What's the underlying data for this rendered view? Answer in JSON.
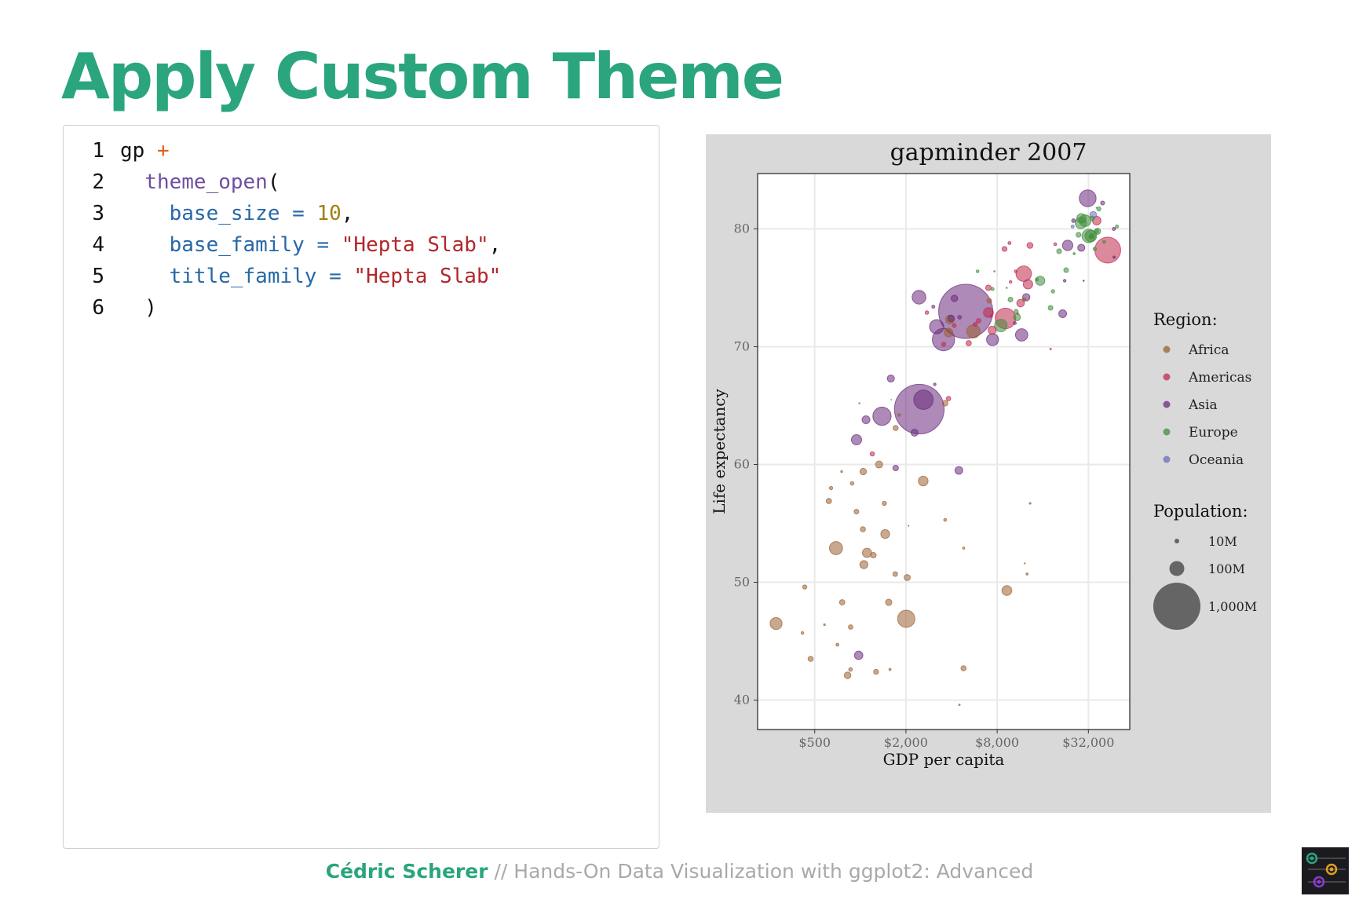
{
  "slide": {
    "title": "Apply Custom Theme"
  },
  "code": {
    "lines": [
      {
        "n": "1",
        "tokens": [
          {
            "t": "gp ",
            "c": "plain"
          },
          {
            "t": "+",
            "c": "op"
          }
        ]
      },
      {
        "n": "2",
        "tokens": [
          {
            "t": "  theme_open",
            "c": "fn"
          },
          {
            "t": "(",
            "c": "plain"
          }
        ]
      },
      {
        "n": "3",
        "tokens": [
          {
            "t": "    base_size = ",
            "c": "arg"
          },
          {
            "t": "10",
            "c": "num"
          },
          {
            "t": ",",
            "c": "plain"
          }
        ]
      },
      {
        "n": "4",
        "tokens": [
          {
            "t": "    base_family = ",
            "c": "arg"
          },
          {
            "t": "\"Hepta Slab\"",
            "c": "str"
          },
          {
            "t": ",",
            "c": "plain"
          }
        ]
      },
      {
        "n": "5",
        "tokens": [
          {
            "t": "    title_family = ",
            "c": "arg"
          },
          {
            "t": "\"Hepta Slab\"",
            "c": "str"
          }
        ]
      },
      {
        "n": "6",
        "tokens": [
          {
            "t": "  )",
            "c": "plain"
          }
        ]
      }
    ]
  },
  "footer": {
    "author": "Cédric Scherer",
    "separator": " // ",
    "course": "Hands-On Data Visualization with ggplot2: Advanced"
  },
  "chart_data": {
    "type": "scatter",
    "title": "gapminder 2007",
    "xlabel": "GDP per capita",
    "ylabel": "Life expectancy",
    "x_scale": "log2",
    "xlim": [
      210,
      60000
    ],
    "ylim": [
      37.5,
      84.7
    ],
    "x_ticks": [
      500,
      2000,
      8000,
      32000
    ],
    "x_tick_labels": [
      "$500",
      "$2,000",
      "$8,000",
      "$32,000"
    ],
    "y_ticks": [
      40,
      50,
      60,
      70,
      80
    ],
    "y_tick_labels": [
      "40",
      "50",
      "60",
      "70",
      "80"
    ],
    "grid": true,
    "legend_placement": "right",
    "legend_color_title": "Region:",
    "legend_size_title": "Population:",
    "regions": [
      {
        "name": "Africa",
        "color": "#9a6132"
      },
      {
        "name": "Americas",
        "color": "#c0284f"
      },
      {
        "name": "Asia",
        "color": "#6a2a7c"
      },
      {
        "name": "Europe",
        "color": "#3f8d3a"
      },
      {
        "name": "Oceania",
        "color": "#6a6cb5"
      }
    ],
    "size_legend": [
      {
        "label": "10M",
        "pop_m": 10
      },
      {
        "label": "100M",
        "pop_m": 100
      },
      {
        "label": "1,000M",
        "pop_m": 1000
      }
    ],
    "points": [
      {
        "r": "Africa",
        "x": 3900,
        "y": 72.3,
        "pop": 33
      },
      {
        "r": "Africa",
        "x": 4800,
        "y": 42.7,
        "pop": 12
      },
      {
        "r": "Africa",
        "x": 1440,
        "y": 56.7,
        "pop": 8
      },
      {
        "r": "Africa",
        "x": 12600,
        "y": 50.7,
        "pop": 2
      },
      {
        "r": "Africa",
        "x": 1220,
        "y": 52.3,
        "pop": 14
      },
      {
        "r": "Africa",
        "x": 430,
        "y": 49.6,
        "pop": 8
      },
      {
        "r": "Africa",
        "x": 2040,
        "y": 50.4,
        "pop": 17
      },
      {
        "r": "Africa",
        "x": 3630,
        "y": 65.2,
        "pop": 14
      },
      {
        "r": "Africa",
        "x": 706,
        "y": 44.7,
        "pop": 4
      },
      {
        "r": "Africa",
        "x": 1700,
        "y": 50.7,
        "pop": 10
      },
      {
        "r": "Africa",
        "x": 986,
        "y": 65.2,
        "pop": 0.7
      },
      {
        "r": "Africa",
        "x": 278,
        "y": 46.5,
        "pop": 65
      },
      {
        "r": "Africa",
        "x": 3630,
        "y": 55.3,
        "pop": 3.8
      },
      {
        "r": "Africa",
        "x": 1540,
        "y": 48.3,
        "pop": 18
      },
      {
        "r": "Africa",
        "x": 2080,
        "y": 54.8,
        "pop": 0.5
      },
      {
        "r": "Africa",
        "x": 5580,
        "y": 71.3,
        "pop": 80
      },
      {
        "r": "Africa",
        "x": 12150,
        "y": 51.6,
        "pop": 0.6
      },
      {
        "r": "Africa",
        "x": 641,
        "y": 58.0,
        "pop": 4.9
      },
      {
        "r": "Africa",
        "x": 691,
        "y": 52.9,
        "pop": 77
      },
      {
        "r": "Africa",
        "x": 13200,
        "y": 56.7,
        "pop": 1.5
      },
      {
        "r": "Africa",
        "x": 753,
        "y": 59.4,
        "pop": 1.7
      },
      {
        "r": "Africa",
        "x": 1330,
        "y": 60.0,
        "pop": 23
      },
      {
        "r": "Africa",
        "x": 943,
        "y": 56.0,
        "pop": 9.9
      },
      {
        "r": "Africa",
        "x": 580,
        "y": 46.4,
        "pop": 1.5
      },
      {
        "r": "Africa",
        "x": 1460,
        "y": 54.1,
        "pop": 35
      },
      {
        "r": "Africa",
        "x": 1570,
        "y": 42.6,
        "pop": 2
      },
      {
        "r": "Africa",
        "x": 415,
        "y": 45.7,
        "pop": 3.2
      },
      {
        "r": "Africa",
        "x": 12060,
        "y": 74.0,
        "pop": 6
      },
      {
        "r": "Africa",
        "x": 1045,
        "y": 59.4,
        "pop": 19
      },
      {
        "r": "Africa",
        "x": 759,
        "y": 48.3,
        "pop": 13
      },
      {
        "r": "Africa",
        "x": 1040,
        "y": 54.5,
        "pop": 12
      },
      {
        "r": "Africa",
        "x": 1800,
        "y": 64.2,
        "pop": 3.3
      },
      {
        "r": "Africa",
        "x": 10950,
        "y": 72.8,
        "pop": 1.3
      },
      {
        "r": "Africa",
        "x": 3820,
        "y": 71.2,
        "pop": 33
      },
      {
        "r": "Africa",
        "x": 824,
        "y": 42.1,
        "pop": 20
      },
      {
        "r": "Africa",
        "x": 4810,
        "y": 52.9,
        "pop": 2
      },
      {
        "r": "Africa",
        "x": 620,
        "y": 56.9,
        "pop": 12.9
      },
      {
        "r": "Africa",
        "x": 2010,
        "y": 46.9,
        "pop": 135
      },
      {
        "r": "Africa",
        "x": 7670,
        "y": 76.4,
        "pop": 0.8
      },
      {
        "r": "Africa",
        "x": 863,
        "y": 46.2,
        "pop": 8.9
      },
      {
        "r": "Africa",
        "x": 1600,
        "y": 65.5,
        "pop": 0.2
      },
      {
        "r": "Africa",
        "x": 1710,
        "y": 63.1,
        "pop": 12
      },
      {
        "r": "Africa",
        "x": 862,
        "y": 42.6,
        "pop": 6.1
      },
      {
        "r": "Africa",
        "x": 9270,
        "y": 49.3,
        "pop": 44
      },
      {
        "r": "Africa",
        "x": 2600,
        "y": 58.6,
        "pop": 42
      },
      {
        "r": "Africa",
        "x": 4510,
        "y": 39.6,
        "pop": 1.1
      },
      {
        "r": "Africa",
        "x": 1107,
        "y": 52.5,
        "pop": 38
      },
      {
        "r": "Africa",
        "x": 883,
        "y": 58.4,
        "pop": 5.7
      },
      {
        "r": "Africa",
        "x": 7090,
        "y": 73.9,
        "pop": 10
      },
      {
        "r": "Africa",
        "x": 1056,
        "y": 51.5,
        "pop": 29
      },
      {
        "r": "Africa",
        "x": 1271,
        "y": 42.4,
        "pop": 11
      },
      {
        "r": "Africa",
        "x": 470,
        "y": 43.5,
        "pop": 12
      },
      {
        "r": "Americas",
        "x": 12780,
        "y": 75.3,
        "pop": 40
      },
      {
        "r": "Americas",
        "x": 3820,
        "y": 65.6,
        "pop": 9
      },
      {
        "r": "Americas",
        "x": 9070,
        "y": 72.4,
        "pop": 190
      },
      {
        "r": "Americas",
        "x": 36320,
        "y": 80.7,
        "pop": 33
      },
      {
        "r": "Americas",
        "x": 13170,
        "y": 78.6,
        "pop": 16
      },
      {
        "r": "Americas",
        "x": 7010,
        "y": 72.9,
        "pop": 44
      },
      {
        "r": "Americas",
        "x": 9650,
        "y": 78.8,
        "pop": 4.1
      },
      {
        "r": "Americas",
        "x": 8950,
        "y": 78.3,
        "pop": 11
      },
      {
        "r": "Americas",
        "x": 6030,
        "y": 72.2,
        "pop": 9.3
      },
      {
        "r": "Americas",
        "x": 7000,
        "y": 75.0,
        "pop": 13.8
      },
      {
        "r": "Americas",
        "x": 5730,
        "y": 71.9,
        "pop": 6.9
      },
      {
        "r": "Americas",
        "x": 5190,
        "y": 70.3,
        "pop": 12.6
      },
      {
        "r": "Americas",
        "x": 1200,
        "y": 60.9,
        "pop": 8.5
      },
      {
        "r": "Americas",
        "x": 3550,
        "y": 70.2,
        "pop": 7.5
      },
      {
        "r": "Americas",
        "x": 7320,
        "y": 72.6,
        "pop": 2.8
      },
      {
        "r": "Americas",
        "x": 11980,
        "y": 76.2,
        "pop": 108
      },
      {
        "r": "Americas",
        "x": 2750,
        "y": 72.9,
        "pop": 5.7
      },
      {
        "r": "Americas",
        "x": 9810,
        "y": 75.5,
        "pop": 3.2
      },
      {
        "r": "Americas",
        "x": 4170,
        "y": 71.8,
        "pop": 6.7
      },
      {
        "r": "Americas",
        "x": 7410,
        "y": 71.4,
        "pop": 28.7
      },
      {
        "r": "Americas",
        "x": 19330,
        "y": 78.7,
        "pop": 3.9
      },
      {
        "r": "Americas",
        "x": 18010,
        "y": 69.8,
        "pop": 1.1
      },
      {
        "r": "Americas",
        "x": 42950,
        "y": 78.2,
        "pop": 301
      },
      {
        "r": "Americas",
        "x": 10610,
        "y": 76.4,
        "pop": 3.4
      },
      {
        "r": "Americas",
        "x": 11420,
        "y": 73.7,
        "pop": 26
      },
      {
        "r": "Asia",
        "x": 975,
        "y": 43.8,
        "pop": 32
      },
      {
        "r": "Asia",
        "x": 29800,
        "y": 75.6,
        "pop": 0.7
      },
      {
        "r": "Asia",
        "x": 1390,
        "y": 64.1,
        "pop": 150
      },
      {
        "r": "Asia",
        "x": 1710,
        "y": 59.7,
        "pop": 14
      },
      {
        "r": "Asia",
        "x": 4960,
        "y": 73.0,
        "pop": 1318
      },
      {
        "r": "Asia",
        "x": 39720,
        "y": 82.2,
        "pop": 7
      },
      {
        "r": "Asia",
        "x": 2450,
        "y": 64.7,
        "pop": 1110
      },
      {
        "r": "Asia",
        "x": 3540,
        "y": 70.6,
        "pop": 224
      },
      {
        "r": "Asia",
        "x": 11610,
        "y": 71.0,
        "pop": 69
      },
      {
        "r": "Asia",
        "x": 4470,
        "y": 59.5,
        "pop": 27
      },
      {
        "r": "Asia",
        "x": 25520,
        "y": 80.7,
        "pop": 6.4
      },
      {
        "r": "Asia",
        "x": 31660,
        "y": 82.6,
        "pop": 127
      },
      {
        "r": "Asia",
        "x": 4520,
        "y": 72.5,
        "pop": 6
      },
      {
        "r": "Asia",
        "x": 1590,
        "y": 67.3,
        "pop": 23
      },
      {
        "r": "Asia",
        "x": 23350,
        "y": 78.6,
        "pop": 49
      },
      {
        "r": "Asia",
        "x": 47300,
        "y": 77.6,
        "pop": 2.5
      },
      {
        "r": "Asia",
        "x": 10460,
        "y": 72.0,
        "pop": 3.9
      },
      {
        "r": "Asia",
        "x": 12450,
        "y": 74.2,
        "pop": 24
      },
      {
        "r": "Asia",
        "x": 3100,
        "y": 66.8,
        "pop": 2.9
      },
      {
        "r": "Asia",
        "x": 944,
        "y": 62.1,
        "pop": 47
      },
      {
        "r": "Asia",
        "x": 1090,
        "y": 63.8,
        "pop": 28
      },
      {
        "r": "Asia",
        "x": 22320,
        "y": 75.6,
        "pop": 3.2
      },
      {
        "r": "Asia",
        "x": 2610,
        "y": 65.5,
        "pop": 169
      },
      {
        "r": "Asia",
        "x": 3190,
        "y": 71.7,
        "pop": 91
      },
      {
        "r": "Asia",
        "x": 21650,
        "y": 72.8,
        "pop": 27.6
      },
      {
        "r": "Asia",
        "x": 47140,
        "y": 80.0,
        "pop": 4.6
      },
      {
        "r": "Asia",
        "x": 3970,
        "y": 72.4,
        "pop": 20
      },
      {
        "r": "Asia",
        "x": 4180,
        "y": 74.1,
        "pop": 19.3
      },
      {
        "r": "Asia",
        "x": 28720,
        "y": 78.4,
        "pop": 23
      },
      {
        "r": "Asia",
        "x": 7460,
        "y": 70.6,
        "pop": 65
      },
      {
        "r": "Asia",
        "x": 2440,
        "y": 74.2,
        "pop": 85
      },
      {
        "r": "Asia",
        "x": 3030,
        "y": 73.4,
        "pop": 4
      },
      {
        "r": "Asia",
        "x": 2280,
        "y": 62.7,
        "pop": 22
      },
      {
        "r": "Europe",
        "x": 5940,
        "y": 76.4,
        "pop": 3.6
      },
      {
        "r": "Europe",
        "x": 36130,
        "y": 79.8,
        "pop": 8.2
      },
      {
        "r": "Europe",
        "x": 33690,
        "y": 79.4,
        "pop": 10.4
      },
      {
        "r": "Europe",
        "x": 7450,
        "y": 74.9,
        "pop": 4.6
      },
      {
        "r": "Europe",
        "x": 10680,
        "y": 73.0,
        "pop": 7.3
      },
      {
        "r": "Europe",
        "x": 14620,
        "y": 75.7,
        "pop": 4.5
      },
      {
        "r": "Europe",
        "x": 22830,
        "y": 76.5,
        "pop": 10.2
      },
      {
        "r": "Europe",
        "x": 35280,
        "y": 78.3,
        "pop": 5.5
      },
      {
        "r": "Europe",
        "x": 33210,
        "y": 79.3,
        "pop": 5.2
      },
      {
        "r": "Europe",
        "x": 30470,
        "y": 80.7,
        "pop": 61
      },
      {
        "r": "Europe",
        "x": 32170,
        "y": 79.4,
        "pop": 82
      },
      {
        "r": "Europe",
        "x": 27540,
        "y": 79.5,
        "pop": 10.7
      },
      {
        "r": "Europe",
        "x": 18010,
        "y": 73.3,
        "pop": 10
      },
      {
        "r": "Europe",
        "x": 36180,
        "y": 81.8,
        "pop": 0.3
      },
      {
        "r": "Europe",
        "x": 40680,
        "y": 78.9,
        "pop": 4.1
      },
      {
        "r": "Europe",
        "x": 28570,
        "y": 80.5,
        "pop": 58
      },
      {
        "r": "Europe",
        "x": 9250,
        "y": 75.0,
        "pop": 0.7
      },
      {
        "r": "Europe",
        "x": 36800,
        "y": 79.8,
        "pop": 16.6
      },
      {
        "r": "Europe",
        "x": 49360,
        "y": 80.2,
        "pop": 4.6
      },
      {
        "r": "Europe",
        "x": 15390,
        "y": 75.6,
        "pop": 38.5
      },
      {
        "r": "Europe",
        "x": 20510,
        "y": 78.1,
        "pop": 10.6
      },
      {
        "r": "Europe",
        "x": 10810,
        "y": 72.5,
        "pop": 22.3
      },
      {
        "r": "Europe",
        "x": 9790,
        "y": 74.0,
        "pop": 10.2
      },
      {
        "r": "Europe",
        "x": 18680,
        "y": 74.7,
        "pop": 5.4
      },
      {
        "r": "Europe",
        "x": 25770,
        "y": 77.9,
        "pop": 2
      },
      {
        "r": "Europe",
        "x": 28820,
        "y": 80.9,
        "pop": 40.4
      },
      {
        "r": "Europe",
        "x": 33860,
        "y": 80.9,
        "pop": 9
      },
      {
        "r": "Europe",
        "x": 37510,
        "y": 81.7,
        "pop": 7.6
      },
      {
        "r": "Europe",
        "x": 8460,
        "y": 71.8,
        "pop": 71
      },
      {
        "r": "Europe",
        "x": 33200,
        "y": 79.4,
        "pop": 60.8
      },
      {
        "r": "Oceania",
        "x": 34440,
        "y": 81.2,
        "pop": 20.4
      },
      {
        "r": "Oceania",
        "x": 25190,
        "y": 80.2,
        "pop": 4.1
      }
    ]
  }
}
